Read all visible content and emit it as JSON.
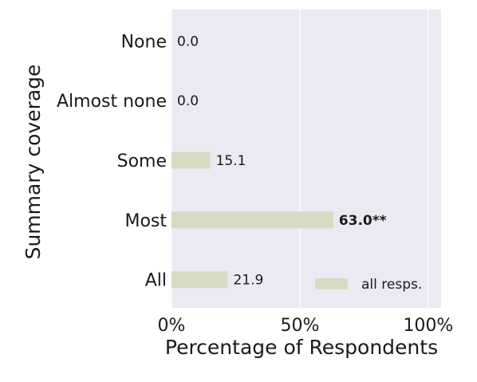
{
  "chart_data": {
    "type": "bar",
    "orientation": "horizontal",
    "categories": [
      "None",
      "Almost none",
      "Some",
      "Most",
      "All"
    ],
    "series": [
      {
        "name": "all resps.",
        "values": [
          0.0,
          0.0,
          15.1,
          63.0,
          21.9
        ],
        "value_labels": [
          "0.0",
          "0.0",
          "15.1",
          "63.0**",
          "21.9"
        ],
        "bold_labels": [
          false,
          false,
          false,
          true,
          false
        ],
        "color": "#d6dcc4"
      }
    ],
    "xlabel": "Percentage of Respondents",
    "ylabel": "Summary coverage",
    "xlim": [
      0,
      105
    ],
    "xticks": [
      0,
      50,
      100
    ],
    "xtick_labels": [
      "0%",
      "50%",
      "100%"
    ],
    "grid": true,
    "legend_position": "lower-right",
    "background_color": "#eaeaf2",
    "grid_color": "#ffffff"
  }
}
